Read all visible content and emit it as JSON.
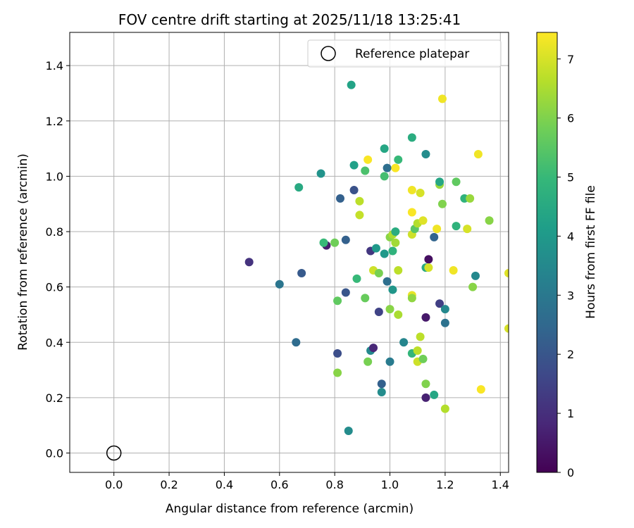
{
  "chart_data": {
    "type": "scatter",
    "title": "FOV centre drift starting at 2025/11/18 13:25:41",
    "xlabel": "Angular distance from reference (arcmin)",
    "ylabel": "Rotation from reference (arcmin)",
    "xlim": [
      -0.16,
      1.43
    ],
    "ylim": [
      -0.07,
      1.52
    ],
    "xticks": [
      "0.0",
      "0.2",
      "0.4",
      "0.6",
      "0.8",
      "1.0",
      "1.2",
      "1.4"
    ],
    "xtick_values": [
      0.0,
      0.2,
      0.4,
      0.6,
      0.8,
      1.0,
      1.2,
      1.4
    ],
    "yticks": [
      "0.0",
      "0.2",
      "0.4",
      "0.6",
      "0.8",
      "1.0",
      "1.2",
      "1.4"
    ],
    "ytick_values": [
      0.0,
      0.2,
      0.4,
      0.6,
      0.8,
      1.0,
      1.2,
      1.4
    ],
    "grid": true,
    "colormap": "viridis",
    "colorbar": {
      "label": "Hours from first FF file",
      "range": [
        0,
        7.45
      ],
      "ticks": [
        "0",
        "1",
        "2",
        "3",
        "4",
        "5",
        "6",
        "7"
      ],
      "tick_values": [
        0,
        1,
        2,
        3,
        4,
        5,
        6,
        7
      ]
    },
    "legend": {
      "position": "top-right",
      "entry": "Reference platepar"
    },
    "reference_point": {
      "x": 0.0,
      "y": 0.0
    },
    "points": [
      [
        0.49,
        0.69,
        1.1
      ],
      [
        0.6,
        0.61,
        2.9
      ],
      [
        0.66,
        0.4,
        2.6
      ],
      [
        0.68,
        0.65,
        2.1
      ],
      [
        0.67,
        0.96,
        4.5
      ],
      [
        0.75,
        1.01,
        3.8
      ],
      [
        0.77,
        0.75,
        0.6
      ],
      [
        0.76,
        0.76,
        5.0
      ],
      [
        0.8,
        0.76,
        5.8
      ],
      [
        0.81,
        0.55,
        5.6
      ],
      [
        0.81,
        0.36,
        1.8
      ],
      [
        0.81,
        0.29,
        6.1
      ],
      [
        0.82,
        0.92,
        2.3
      ],
      [
        0.84,
        0.58,
        2.0
      ],
      [
        0.84,
        0.77,
        2.3
      ],
      [
        0.85,
        0.08,
        3.6
      ],
      [
        0.86,
        1.33,
        4.3
      ],
      [
        0.87,
        0.95,
        1.9
      ],
      [
        0.87,
        1.04,
        4.2
      ],
      [
        0.88,
        0.63,
        5.0
      ],
      [
        0.89,
        0.91,
        6.7
      ],
      [
        0.89,
        0.86,
        6.8
      ],
      [
        0.91,
        0.56,
        5.7
      ],
      [
        0.91,
        1.02,
        5.3
      ],
      [
        0.92,
        1.06,
        7.4
      ],
      [
        0.92,
        0.33,
        5.9
      ],
      [
        0.93,
        0.37,
        3.5
      ],
      [
        0.94,
        0.38,
        0.8
      ],
      [
        0.93,
        0.73,
        1.2
      ],
      [
        0.94,
        0.66,
        6.9
      ],
      [
        0.95,
        0.74,
        4.0
      ],
      [
        0.96,
        0.65,
        5.9
      ],
      [
        0.96,
        0.51,
        1.5
      ],
      [
        0.97,
        0.22,
        3.6
      ],
      [
        0.97,
        0.25,
        2.3
      ],
      [
        0.98,
        1.1,
        4.4
      ],
      [
        0.98,
        0.72,
        4.0
      ],
      [
        0.98,
        1.0,
        5.2
      ],
      [
        0.99,
        0.62,
        2.7
      ],
      [
        0.99,
        1.03,
        2.7
      ],
      [
        1.0,
        0.52,
        6.1
      ],
      [
        1.0,
        0.33,
        3.1
      ],
      [
        1.0,
        0.78,
        6.1
      ],
      [
        1.01,
        0.73,
        4.8
      ],
      [
        1.01,
        0.59,
        3.9
      ],
      [
        1.01,
        0.79,
        6.5
      ],
      [
        1.02,
        1.03,
        7.4
      ],
      [
        1.02,
        0.8,
        4.6
      ],
      [
        1.02,
        0.76,
        6.4
      ],
      [
        1.03,
        0.5,
        6.5
      ],
      [
        1.03,
        0.66,
        6.7
      ],
      [
        1.03,
        1.06,
        5.0
      ],
      [
        1.05,
        0.4,
        3.4
      ],
      [
        1.08,
        0.57,
        7.2
      ],
      [
        1.08,
        0.56,
        6.2
      ],
      [
        1.08,
        0.36,
        4.9
      ],
      [
        1.08,
        0.87,
        7.4
      ],
      [
        1.08,
        0.95,
        7.3
      ],
      [
        1.08,
        0.79,
        6.9
      ],
      [
        1.08,
        1.14,
        4.6
      ],
      [
        1.09,
        0.81,
        5.5
      ],
      [
        1.1,
        0.83,
        6.6
      ],
      [
        1.1,
        0.37,
        6.7
      ],
      [
        1.1,
        0.33,
        6.9
      ],
      [
        1.11,
        0.94,
        7.0
      ],
      [
        1.11,
        0.42,
        6.7
      ],
      [
        1.12,
        0.34,
        5.8
      ],
      [
        1.12,
        0.84,
        7.1
      ],
      [
        1.13,
        0.25,
        6.0
      ],
      [
        1.13,
        0.2,
        0.7
      ],
      [
        1.13,
        0.49,
        0.5
      ],
      [
        1.13,
        0.67,
        4.5
      ],
      [
        1.13,
        1.08,
        3.6
      ],
      [
        1.14,
        0.7,
        0.3
      ],
      [
        1.14,
        0.67,
        7.0
      ],
      [
        1.16,
        0.21,
        4.4
      ],
      [
        1.16,
        0.78,
        2.4
      ],
      [
        1.17,
        0.81,
        7.3
      ],
      [
        1.18,
        0.54,
        1.4
      ],
      [
        1.18,
        0.97,
        6.3
      ],
      [
        1.18,
        0.98,
        4.4
      ],
      [
        1.19,
        1.28,
        7.3
      ],
      [
        1.19,
        0.9,
        6.0
      ],
      [
        1.2,
        0.52,
        3.5
      ],
      [
        1.2,
        0.47,
        2.8
      ],
      [
        1.2,
        0.16,
        6.6
      ],
      [
        1.23,
        0.66,
        7.3
      ],
      [
        1.24,
        0.98,
        5.6
      ],
      [
        1.24,
        0.82,
        4.8
      ],
      [
        1.27,
        0.92,
        4.8
      ],
      [
        1.28,
        0.81,
        7.0
      ],
      [
        1.29,
        0.92,
        6.3
      ],
      [
        1.3,
        0.6,
        6.1
      ],
      [
        1.31,
        0.64,
        3.5
      ],
      [
        1.32,
        1.08,
        7.3
      ],
      [
        1.33,
        0.23,
        7.4
      ],
      [
        1.36,
        0.84,
        6.1
      ],
      [
        1.43,
        0.45,
        7.0
      ],
      [
        1.43,
        0.65,
        7.1
      ]
    ]
  }
}
